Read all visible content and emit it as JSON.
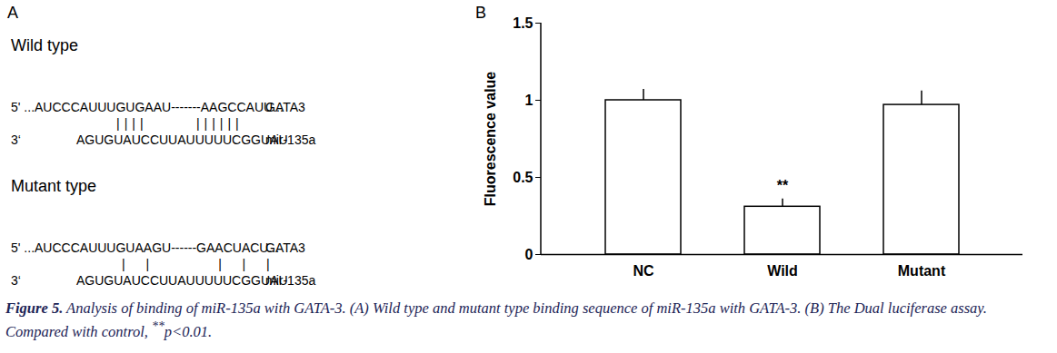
{
  "panel_a": {
    "label": "A",
    "groups": [
      {
        "title": "Wild type",
        "target": "5' ...AUCCCAUUUGUGAAU-------AAGCCAUU...",
        "target_name": "GATA3",
        "pairs": "||||      ||||||",
        "mirna_end": "3‘",
        "mirna": "AGUGUAUCCUUAUUUUUCGGUAU",
        "mirna_name": "mir-135a"
      },
      {
        "title": "Mutant type",
        "target": "5' ...AUCCCAUUUGUAAGU------GAACUACU...",
        "target_name": "GATA3",
        "pairs": "|  |        |  |  |",
        "mirna_end": "3‘",
        "mirna": "AGUGUAUCCUUAUUUUUCGGUAU",
        "mirna_name": "mir-135a"
      }
    ]
  },
  "chart_data": {
    "type": "bar",
    "label": "B",
    "y_label": "Fluorescence value",
    "categories": [
      "NC",
      "Wild",
      "Mutant"
    ],
    "values": [
      1.0,
      0.31,
      0.97
    ],
    "errors": [
      0.07,
      0.05,
      0.09
    ],
    "color": "#ffffff",
    "ylim": [
      0,
      1.5
    ],
    "yticks": [
      0,
      0.5,
      1,
      1.5
    ],
    "grid": false,
    "annotations": [
      {
        "category": "Wild",
        "text": "**"
      }
    ]
  },
  "caption": {
    "label": "Figure 5.",
    "text": " Analysis of binding of miR-135a with GATA-3. (A) Wild type and mutant type binding sequence of miR-135a with GATA-3. (B) The Dual luciferase assay. Compared with control, ",
    "superscript": "**",
    "tail": "p<0.01."
  }
}
